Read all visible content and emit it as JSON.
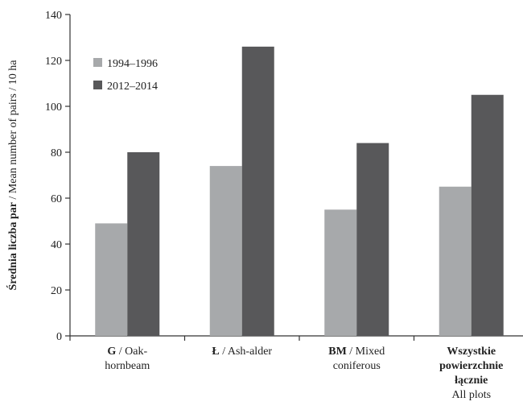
{
  "chart_data": {
    "type": "bar",
    "categories": [
      {
        "lines": [
          {
            "parts": [
              {
                "text": "G",
                "bold": true
              },
              {
                "text": " / Oak-",
                "bold": false
              }
            ]
          },
          {
            "parts": [
              {
                "text": "hornbeam",
                "bold": false
              }
            ]
          }
        ]
      },
      {
        "lines": [
          {
            "parts": [
              {
                "text": "Ł",
                "bold": true
              },
              {
                "text": " / Ash-alder",
                "bold": false
              }
            ]
          }
        ]
      },
      {
        "lines": [
          {
            "parts": [
              {
                "text": "BM",
                "bold": true
              },
              {
                "text": " / Mixed",
                "bold": false
              }
            ]
          },
          {
            "parts": [
              {
                "text": "coniferous",
                "bold": false
              }
            ]
          }
        ]
      },
      {
        "lines": [
          {
            "parts": [
              {
                "text": "Wszystkie",
                "bold": true
              }
            ]
          },
          {
            "parts": [
              {
                "text": "powierzchnie",
                "bold": true
              }
            ]
          },
          {
            "parts": [
              {
                "text": "łącznie",
                "bold": true
              }
            ]
          },
          {
            "parts": [
              {
                "text": "All plots",
                "bold": false
              }
            ]
          }
        ]
      }
    ],
    "series": [
      {
        "name": "1994–1996",
        "color": "#a7a9ab",
        "values": [
          49,
          74,
          55,
          65
        ]
      },
      {
        "name": "2012–2014",
        "color": "#58585a",
        "values": [
          80,
          126,
          84,
          105
        ]
      }
    ],
    "ylabel": {
      "bold": "Średnia liczba par",
      "normal": " / Mean number of pairs / 10 ha"
    },
    "ylim": [
      0,
      140
    ],
    "yticks": [
      0,
      20,
      40,
      60,
      80,
      100,
      120,
      140
    ],
    "grid": false,
    "legend_position": "top-left"
  }
}
